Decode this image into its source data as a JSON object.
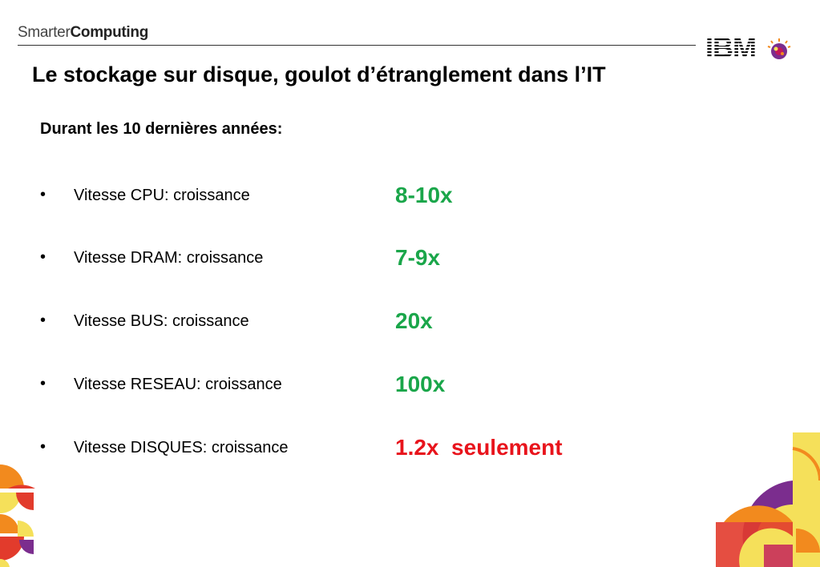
{
  "header": {
    "brand_light": "Smarter",
    "brand_bold": "Computing",
    "logo_text": "IBM"
  },
  "slide": {
    "title": "Le stockage sur disque, goulot d’étranglement dans l’IT",
    "subtitle": "Durant les 10 dernières années:",
    "items": [
      {
        "bullet": "•",
        "label": "Vitesse CPU: croissance",
        "value": "8-10x",
        "color": "#1aa64a"
      },
      {
        "bullet": "•",
        "label": "Vitesse DRAM: croissance",
        "value": "7-9x",
        "color": "#1aa64a"
      },
      {
        "bullet": "•",
        "label": "Vitesse BUS: croissance",
        "value": "20x",
        "color": "#1aa64a"
      },
      {
        "bullet": "•",
        "label": "Vitesse RESEAU: croissance",
        "value": "100x",
        "color": "#1aa64a"
      },
      {
        "bullet": "•",
        "label": "Vitesse DISQUES: croissance",
        "value": "1.2x  seulement",
        "color": "#e8141c"
      }
    ]
  },
  "colors": {
    "green": "#1aa64a",
    "red": "#e8141c",
    "deco_yellow": "#f5e05a",
    "deco_orange": "#f28a1e",
    "deco_red": "#e23b2c",
    "deco_purple": "#7b2d8e",
    "deco_magenta": "#c2185b"
  }
}
